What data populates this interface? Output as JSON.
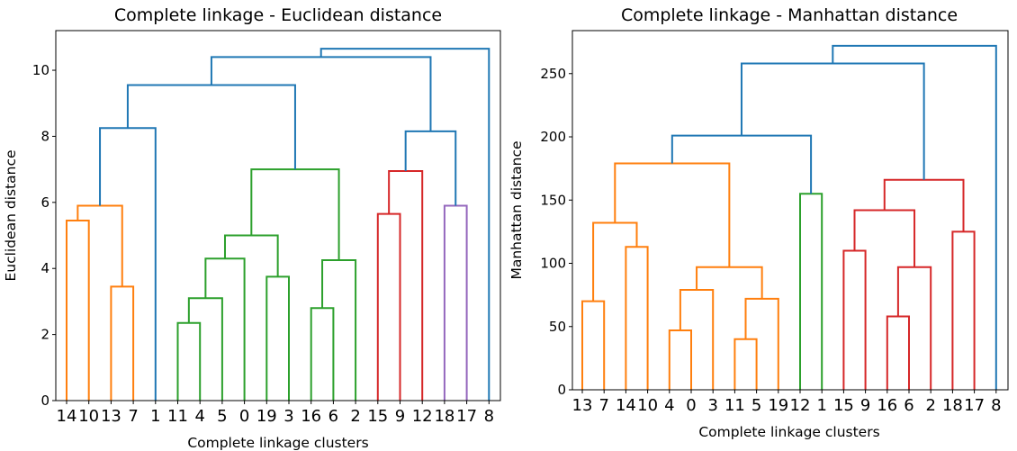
{
  "chart_data": [
    {
      "type": "dendrogram",
      "title": "Complete linkage - Euclidean distance",
      "xlabel": "Complete linkage clusters",
      "ylabel": "Euclidean distance",
      "ylim": [
        0,
        11.2
      ],
      "yticks": [
        0,
        2,
        4,
        6,
        8,
        10
      ],
      "leaves": [
        "14",
        "10",
        "13",
        "7",
        "1",
        "11",
        "4",
        "5",
        "0",
        "19",
        "3",
        "16",
        "6",
        "2",
        "15",
        "9",
        "12",
        "18",
        "17",
        "8"
      ],
      "links": [
        {
          "a": 0,
          "b": 1,
          "h": 5.45,
          "color": "#ff7f0e"
        },
        {
          "a": 2,
          "b": 3,
          "h": 3.45,
          "color": "#ff7f0e"
        },
        {
          "a": 20,
          "b": 21,
          "h": 5.9,
          "color": "#ff7f0e"
        },
        {
          "a": 22,
          "b": 4,
          "h": 8.25,
          "color": "#1f77b4"
        },
        {
          "a": 5,
          "b": 6,
          "h": 2.35,
          "color": "#2ca02c"
        },
        {
          "a": 24,
          "b": 7,
          "h": 3.1,
          "color": "#2ca02c"
        },
        {
          "a": 25,
          "b": 8,
          "h": 4.3,
          "color": "#2ca02c"
        },
        {
          "a": 9,
          "b": 10,
          "h": 3.75,
          "color": "#2ca02c"
        },
        {
          "a": 26,
          "b": 27,
          "h": 5.0,
          "color": "#2ca02c"
        },
        {
          "a": 11,
          "b": 12,
          "h": 2.8,
          "color": "#2ca02c"
        },
        {
          "a": 29,
          "b": 13,
          "h": 4.25,
          "color": "#2ca02c"
        },
        {
          "a": 28,
          "b": 30,
          "h": 7.0,
          "color": "#2ca02c"
        },
        {
          "a": 23,
          "b": 31,
          "h": 9.55,
          "color": "#1f77b4"
        },
        {
          "a": 14,
          "b": 15,
          "h": 5.65,
          "color": "#d62728"
        },
        {
          "a": 33,
          "b": 16,
          "h": 6.95,
          "color": "#d62728"
        },
        {
          "a": 17,
          "b": 18,
          "h": 5.9,
          "color": "#9467bd"
        },
        {
          "a": 34,
          "b": 35,
          "h": 8.15,
          "color": "#1f77b4"
        },
        {
          "a": 32,
          "b": 36,
          "h": 10.4,
          "color": "#1f77b4"
        },
        {
          "a": 37,
          "b": 19,
          "h": 10.65,
          "color": "#1f77b4"
        }
      ]
    },
    {
      "type": "dendrogram",
      "title": "Complete linkage - Manhattan distance",
      "xlabel": "Complete linkage clusters",
      "ylabel": "Manhattan distance",
      "ylim": [
        0,
        284
      ],
      "yticks": [
        0,
        50,
        100,
        150,
        200,
        250
      ],
      "leaves": [
        "13",
        "7",
        "14",
        "10",
        "4",
        "0",
        "3",
        "11",
        "5",
        "19",
        "12",
        "1",
        "15",
        "9",
        "16",
        "6",
        "2",
        "18",
        "17",
        "8"
      ],
      "links": [
        {
          "a": 2,
          "b": 3,
          "h": 113,
          "color": "#ff7f0e"
        },
        {
          "a": 0,
          "b": 1,
          "h": 70,
          "color": "#ff7f0e"
        },
        {
          "a": 20,
          "b": 21,
          "h": 132,
          "color": "#ff7f0e"
        },
        {
          "a": 4,
          "b": 5,
          "h": 47,
          "color": "#ff7f0e"
        },
        {
          "a": 23,
          "b": 6,
          "h": 79,
          "color": "#ff7f0e"
        },
        {
          "a": 7,
          "b": 8,
          "h": 40,
          "color": "#ff7f0e"
        },
        {
          "a": 25,
          "b": 9,
          "h": 72,
          "color": "#ff7f0e"
        },
        {
          "a": 24,
          "b": 26,
          "h": 97,
          "color": "#ff7f0e"
        },
        {
          "a": 22,
          "b": 27,
          "h": 179,
          "color": "#ff7f0e"
        },
        {
          "a": 10,
          "b": 11,
          "h": 155,
          "color": "#2ca02c"
        },
        {
          "a": 28,
          "b": 29,
          "h": 201,
          "color": "#1f77b4"
        },
        {
          "a": 12,
          "b": 13,
          "h": 110,
          "color": "#d62728"
        },
        {
          "a": 14,
          "b": 15,
          "h": 58,
          "color": "#d62728"
        },
        {
          "a": 32,
          "b": 16,
          "h": 97,
          "color": "#d62728"
        },
        {
          "a": 31,
          "b": 33,
          "h": 142,
          "color": "#d62728"
        },
        {
          "a": 17,
          "b": 18,
          "h": 125,
          "color": "#d62728"
        },
        {
          "a": 34,
          "b": 35,
          "h": 166,
          "color": "#d62728"
        },
        {
          "a": 30,
          "b": 36,
          "h": 258,
          "color": "#1f77b4"
        },
        {
          "a": 37,
          "b": 19,
          "h": 272,
          "color": "#1f77b4"
        }
      ]
    }
  ]
}
